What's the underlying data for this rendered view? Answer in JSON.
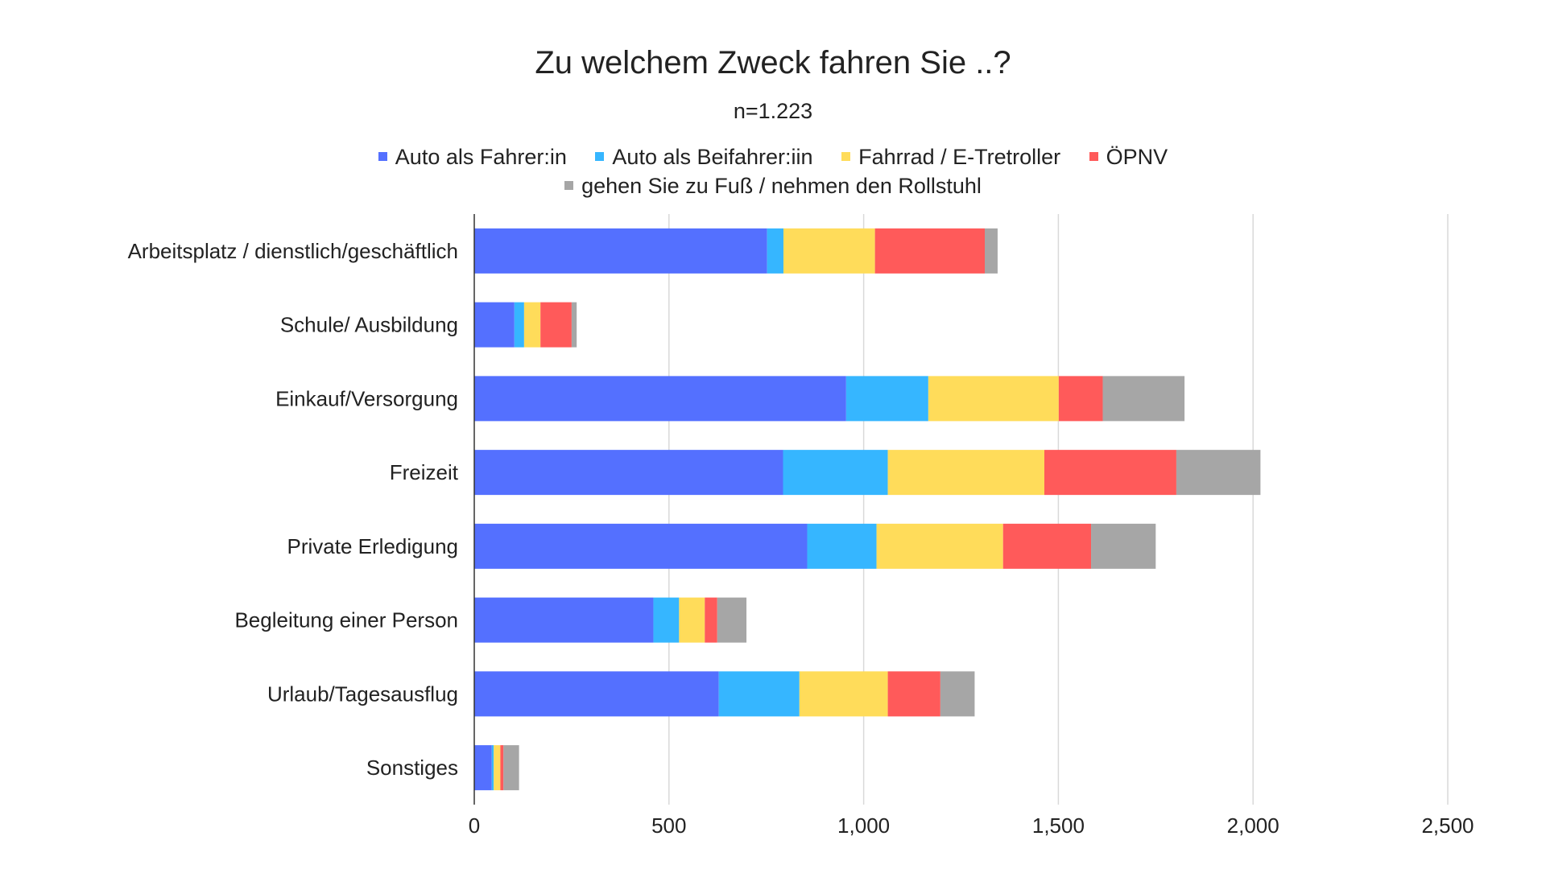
{
  "chart_data": {
    "type": "bar",
    "orientation": "horizontal",
    "stacked": true,
    "title": "Zu welchem Zweck fahren Sie ..?",
    "subtitle": "n=1.223",
    "categories": [
      "Arbeitsplatz / dienstlich/geschäftlich",
      "Schule/ Ausbildung",
      "Einkauf/Versorgung",
      "Freizeit",
      "Private Erledigung",
      "Begleitung einer Person",
      "Urlaub/Tagesausflug",
      "Sonstiges"
    ],
    "series": [
      {
        "name": "Auto als Fahrer:in",
        "color": "#5470FF",
        "values": [
          752,
          103,
          955,
          793,
          855,
          460,
          628,
          45
        ]
      },
      {
        "name": "Auto als Beifahrer:iin",
        "color": "#36B6FF",
        "values": [
          42,
          25,
          211,
          269,
          178,
          66,
          207,
          5
        ]
      },
      {
        "name": "Fahrrad / E-Tretroller",
        "color": "#FFDC5A",
        "values": [
          235,
          42,
          335,
          402,
          325,
          66,
          227,
          17
        ]
      },
      {
        "name": "ÖPNV",
        "color": "#FF5A5A",
        "values": [
          282,
          80,
          113,
          339,
          226,
          32,
          135,
          8
        ]
      },
      {
        "name": "gehen Sie zu Fuß / nehmen den Rollstuhl",
        "color": "#A6A6A6",
        "values": [
          33,
          13,
          210,
          216,
          166,
          75,
          88,
          40
        ]
      }
    ],
    "xlim": [
      0,
      2500
    ],
    "xticks": [
      0,
      500,
      1000,
      1500,
      2000,
      2500
    ],
    "xtick_labels": [
      "0",
      "500",
      "1,000",
      "1,500",
      "2,000",
      "2,500"
    ],
    "xlabel": "",
    "ylabel": "",
    "grid": true,
    "legend_position": "top"
  }
}
